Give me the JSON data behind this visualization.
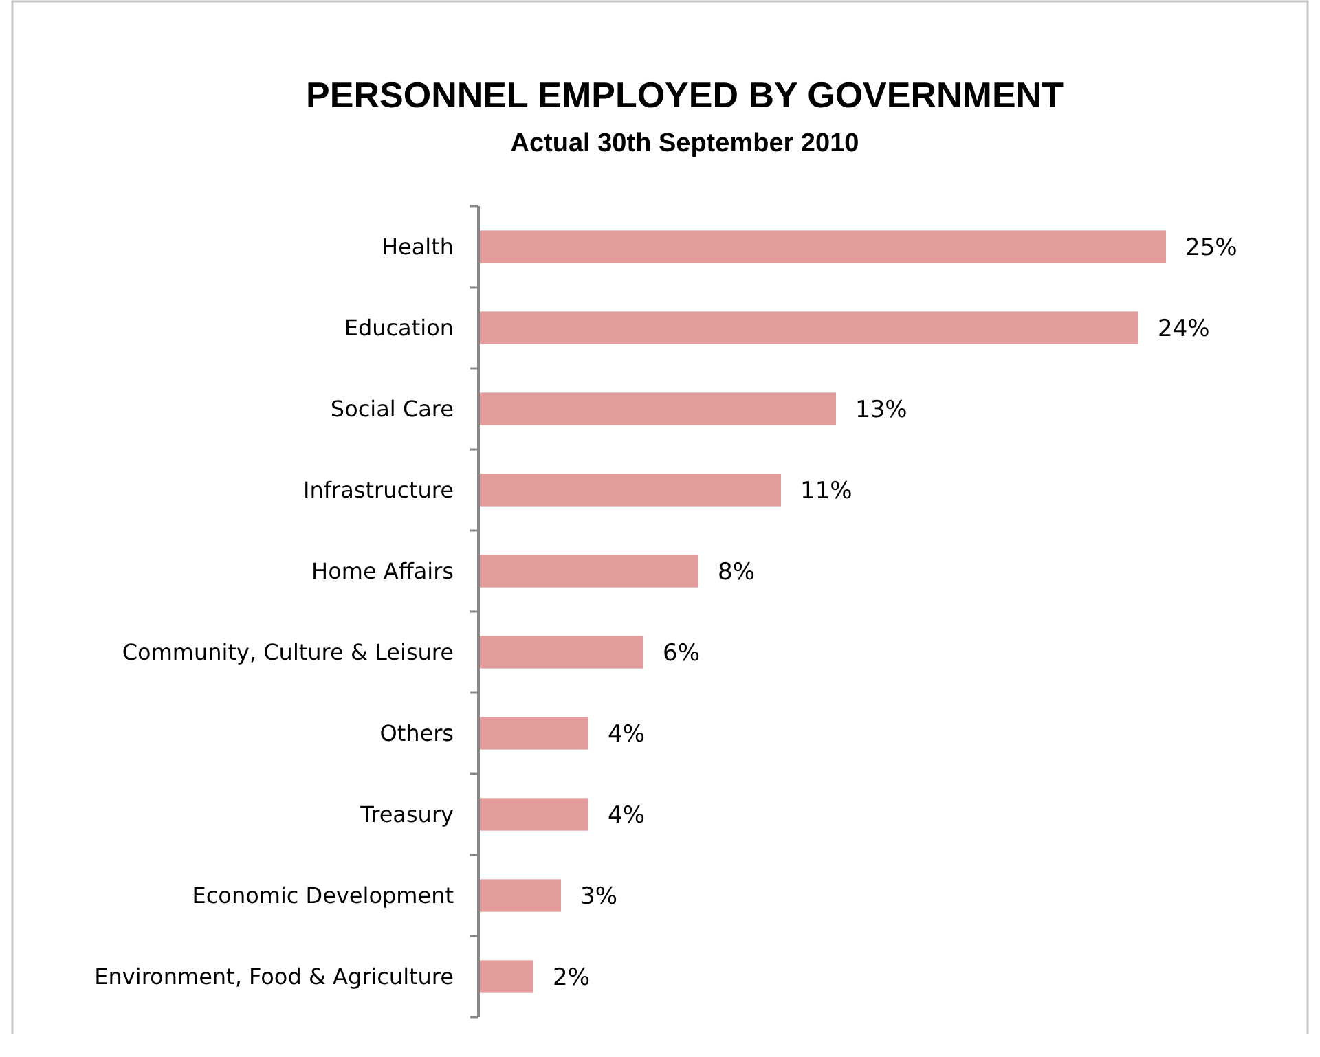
{
  "chart_data": {
    "type": "bar",
    "orientation": "horizontal",
    "title": "PERSONNEL EMPLOYED BY GOVERNMENT",
    "subtitle": "Actual 30th September 2010",
    "categories": [
      "Health",
      "Education",
      "Social Care",
      "Infrastructure",
      "Home Affairs",
      "Community, Culture & Leisure",
      "Others",
      "Treasury",
      "Economic Development",
      "Environment, Food & Agriculture"
    ],
    "values": [
      25,
      24,
      13,
      11,
      8,
      6,
      4,
      4,
      3,
      2
    ],
    "value_labels": [
      "25%",
      "24%",
      "13%",
      "11%",
      "8%",
      "6%",
      "4%",
      "4%",
      "3%",
      "2%"
    ],
    "color": "#e29c9c"
  }
}
